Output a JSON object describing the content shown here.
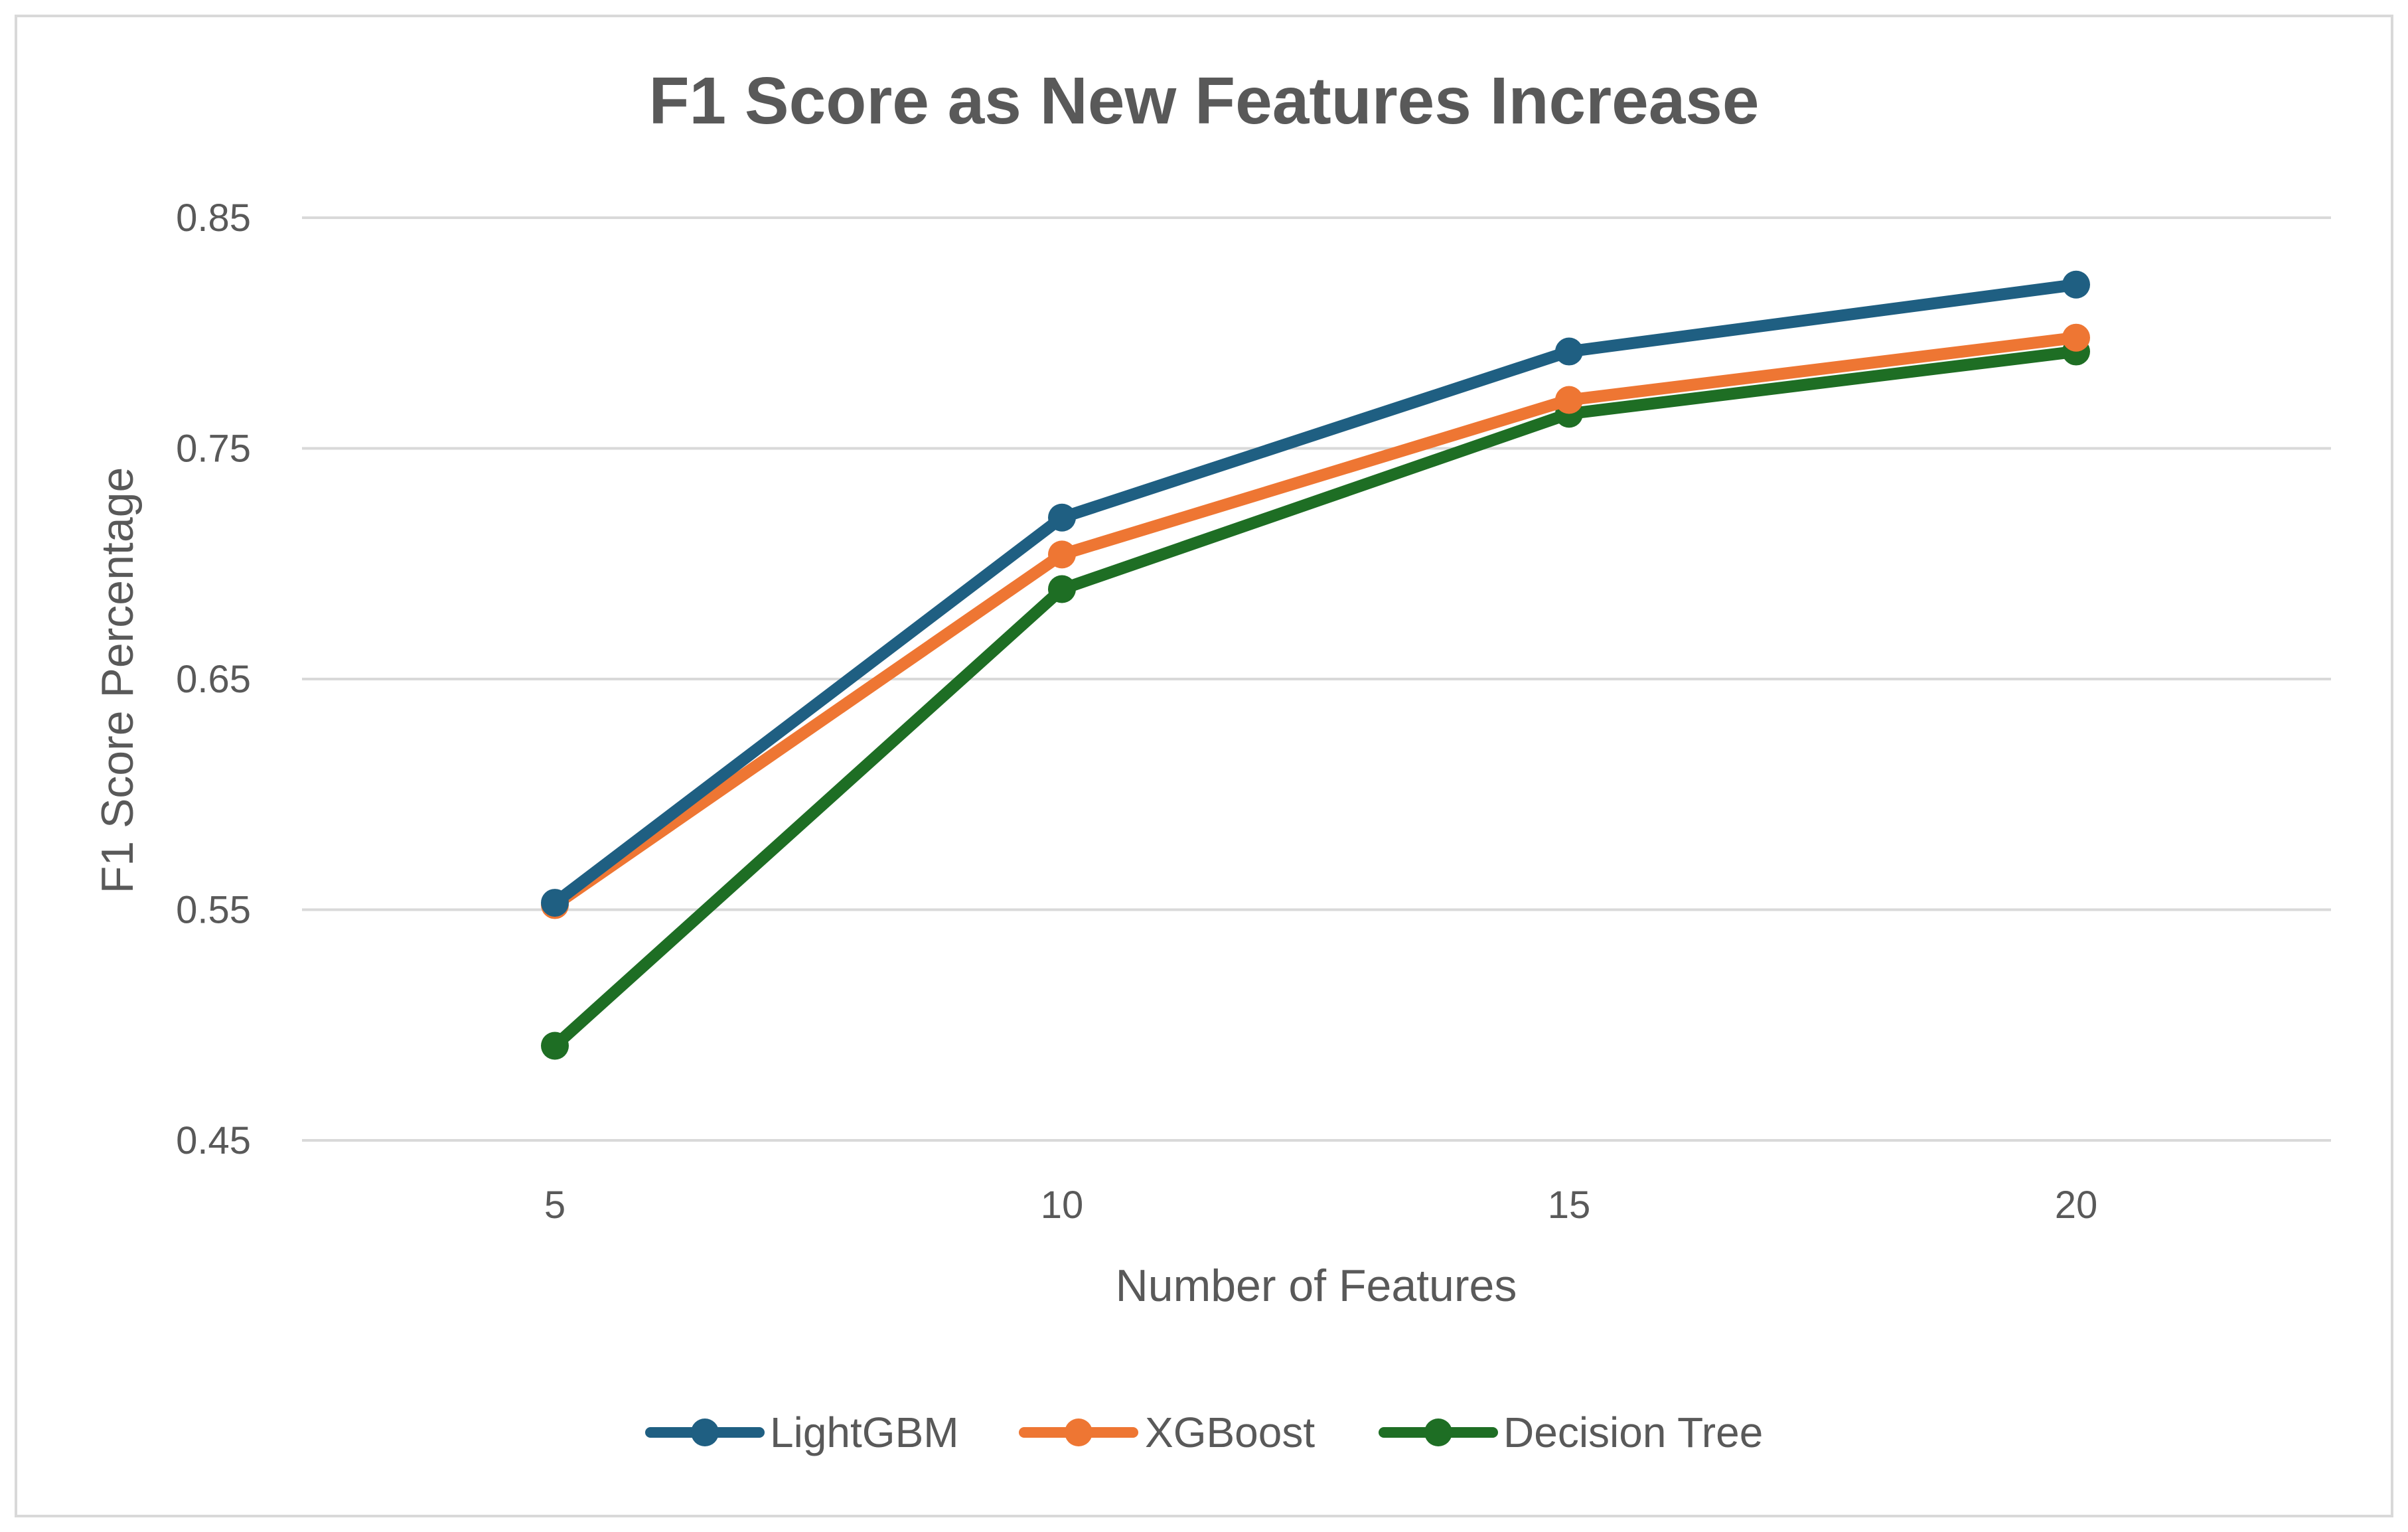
{
  "chart_data": {
    "type": "line",
    "title": "F1 Score as New Features Increase",
    "xlabel": "Number of Features",
    "ylabel": "F1 Score Percentage",
    "x": [
      5,
      10,
      15,
      20
    ],
    "x_tick_labels": [
      "5",
      "10",
      "15",
      "20"
    ],
    "ylim": [
      0.45,
      0.85
    ],
    "y_ticks": [
      0.45,
      0.55,
      0.65,
      0.75,
      0.85
    ],
    "y_tick_labels": [
      "0.45",
      "0.55",
      "0.65",
      "0.75",
      "0.85"
    ],
    "grid": true,
    "legend_position": "bottom",
    "series": [
      {
        "name": "LightGBM",
        "color": "#1f5f82",
        "values": [
          0.553,
          0.72,
          0.792,
          0.821
        ]
      },
      {
        "name": "XGBoost",
        "color": "#ee7633",
        "values": [
          0.552,
          0.704,
          0.771,
          0.798
        ]
      },
      {
        "name": "Decision Tree",
        "color": "#1e6e24",
        "values": [
          0.491,
          0.689,
          0.765,
          0.792
        ]
      }
    ]
  }
}
